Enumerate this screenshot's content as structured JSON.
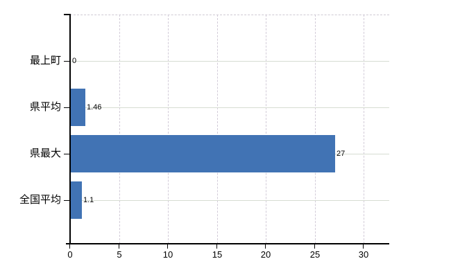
{
  "chart_data": {
    "type": "bar",
    "orientation": "horizontal",
    "title": "",
    "xlabel": "",
    "ylabel": "",
    "categories": [
      "最上町",
      "県平均",
      "県最大",
      "全国平均"
    ],
    "values": [
      0,
      1.46,
      27,
      1.1
    ],
    "value_labels": [
      "0",
      "1.46",
      "27",
      "1.1"
    ],
    "x_ticks": [
      0,
      5,
      10,
      15,
      20,
      25,
      30
    ],
    "x_tick_labels": [
      "0",
      "5",
      "10",
      "15",
      "20",
      "25",
      "30"
    ],
    "xlim": [
      0,
      32.6
    ],
    "grid": true,
    "legend": "none",
    "colors": {
      "bar": "#4173b4",
      "axis": "#000000",
      "h_grid": "#d6dcd2",
      "v_grid": "#d2cbd8",
      "top_border": "#cfc9d3",
      "text": "#000000",
      "background": "#ffffff"
    }
  }
}
